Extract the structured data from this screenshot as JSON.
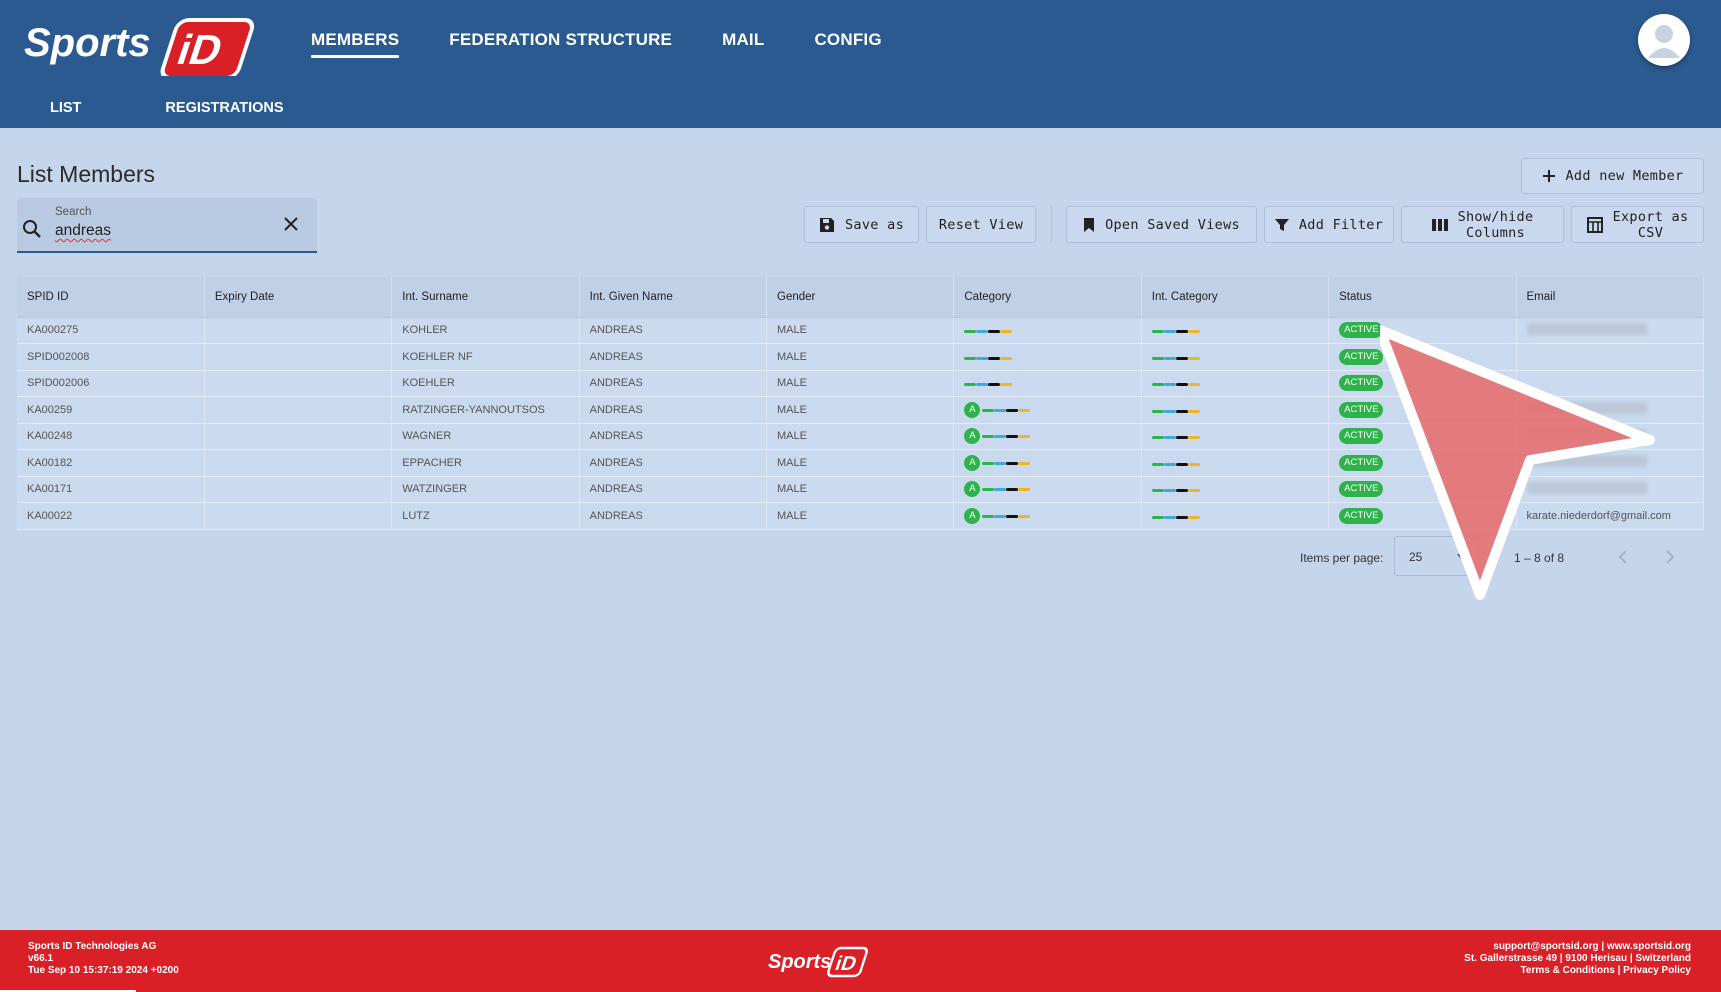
{
  "header": {
    "logo_text": "SportsID",
    "nav": [
      "MEMBERS",
      "FEDERATION STRUCTURE",
      "MAIL",
      "CONFIG"
    ],
    "active_nav": "MEMBERS",
    "subnav": [
      "LIST",
      "REGISTRATIONS"
    ]
  },
  "page": {
    "title": "List Members",
    "add_button": "Add new Member",
    "search": {
      "label": "Search",
      "value": "andreas"
    },
    "toolbar": {
      "save_as": "Save as",
      "reset_view": "Reset View",
      "open_saved_views": "Open Saved Views",
      "add_filter": "Add Filter",
      "show_hide_1": "Show/hide",
      "show_hide_2": "Columns",
      "export_1": "Export as",
      "export_2": "CSV"
    }
  },
  "table": {
    "columns": [
      "SPID ID",
      "Expiry Date",
      "Int. Surname",
      "Int. Given Name",
      "Gender",
      "Category",
      "Int. Category",
      "Status",
      "Email"
    ],
    "rows": [
      {
        "spid": "KA000275",
        "expiry": "",
        "surname": "KOHLER",
        "given": "ANDREAS",
        "gender": "MALE",
        "cat_a": false,
        "status": "ACTIVE",
        "email": "",
        "email_blurred": true
      },
      {
        "spid": "SPID002008",
        "expiry": "",
        "surname": "KOEHLER NF",
        "given": "ANDREAS",
        "gender": "MALE",
        "cat_a": false,
        "status": "ACTIVE",
        "email": "",
        "email_blurred": false
      },
      {
        "spid": "SPID002006",
        "expiry": "",
        "surname": "KOEHLER",
        "given": "ANDREAS",
        "gender": "MALE",
        "cat_a": false,
        "status": "ACTIVE",
        "email": "",
        "email_blurred": false
      },
      {
        "spid": "KA00259",
        "expiry": "",
        "surname": "RATZINGER-YANNOUTSOS",
        "given": "ANDREAS",
        "gender": "MALE",
        "cat_a": true,
        "status": "ACTIVE",
        "email": "",
        "email_blurred": true
      },
      {
        "spid": "KA00248",
        "expiry": "",
        "surname": "WAGNER",
        "given": "ANDREAS",
        "gender": "MALE",
        "cat_a": true,
        "status": "ACTIVE",
        "email": "",
        "email_blurred": true
      },
      {
        "spid": "KA00182",
        "expiry": "",
        "surname": "EPPACHER",
        "given": "ANDREAS",
        "gender": "MALE",
        "cat_a": true,
        "status": "ACTIVE",
        "email": "",
        "email_blurred": true
      },
      {
        "spid": "KA00171",
        "expiry": "",
        "surname": "WATZINGER",
        "given": "ANDREAS",
        "gender": "MALE",
        "cat_a": true,
        "status": "ACTIVE",
        "email": "",
        "email_blurred": true
      },
      {
        "spid": "KA00022",
        "expiry": "",
        "surname": "LUTZ",
        "given": "ANDREAS",
        "gender": "MALE",
        "cat_a": true,
        "status": "ACTIVE",
        "email": "karate.niederdorf@gmail.com",
        "email_blurred": false
      }
    ],
    "category_badge": "A"
  },
  "pager": {
    "items_per_page_label": "Items per page:",
    "items_per_page": "25",
    "range": "1 – 8 of 8"
  },
  "footer": {
    "company": "Sports ID Technologies AG",
    "version": "v66.1",
    "build_date": "Tue Sep 10 15:37:19 2024 +0200",
    "contact": "support@sportsid.org | www.sportsid.org",
    "address": "St. Gallerstrasse 49 | 9100 Herisau | Switzerland",
    "links": "Terms & Conditions | Privacy Policy",
    "logo_text": "SportsID"
  },
  "colors": {
    "header": "#2a5a8f",
    "background": "#c5d5ec",
    "footer": "#d92027",
    "active_badge": "#2db34a"
  }
}
